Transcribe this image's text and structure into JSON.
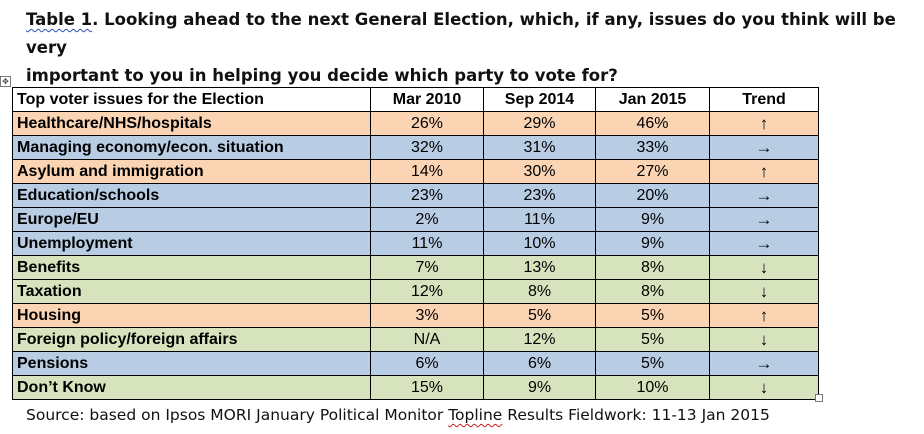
{
  "title": {
    "label": "Table 1",
    "line1_rest": ". Looking ahead to the next General Election, which, if any, issues do you think will be very",
    "line2": "important to you in helping you decide which party to vote for?"
  },
  "table": {
    "headers": [
      "Top voter issues for the Election",
      "Mar 2010",
      "Sep 2014",
      "Jan 2015",
      "Trend"
    ],
    "rows": [
      {
        "issue": "Healthcare/NHS/hospitals",
        "mar2010": "26%",
        "sep2014": "29%",
        "jan2015": "46%",
        "trend": "↑",
        "color": "peach"
      },
      {
        "issue": "Managing economy/econ. situation",
        "mar2010": "32%",
        "sep2014": "31%",
        "jan2015": "33%",
        "trend": "→",
        "color": "blue"
      },
      {
        "issue": "Asylum and immigration",
        "mar2010": "14%",
        "sep2014": "30%",
        "jan2015": "27%",
        "trend": "↑",
        "color": "peach"
      },
      {
        "issue": "Education/schools",
        "mar2010": "23%",
        "sep2014": "23%",
        "jan2015": "20%",
        "trend": "→",
        "color": "blue"
      },
      {
        "issue": "Europe/EU",
        "mar2010": "2%",
        "sep2014": "11%",
        "jan2015": "9%",
        "trend": "→",
        "color": "blue"
      },
      {
        "issue": "Unemployment",
        "mar2010": "11%",
        "sep2014": "10%",
        "jan2015": "9%",
        "trend": "→",
        "color": "blue"
      },
      {
        "issue": "Benefits",
        "mar2010": "7%",
        "sep2014": "13%",
        "jan2015": "8%",
        "trend": "↓",
        "color": "green"
      },
      {
        "issue": "Taxation",
        "mar2010": "12%",
        "sep2014": "8%",
        "jan2015": "8%",
        "trend": "↓",
        "color": "green"
      },
      {
        "issue": "Housing",
        "mar2010": "3%",
        "sep2014": "5%",
        "jan2015": "5%",
        "trend": "↑",
        "color": "peach"
      },
      {
        "issue": "Foreign policy/foreign affairs",
        "mar2010": "N/A",
        "sep2014": "12%",
        "jan2015": "5%",
        "trend": "↓",
        "color": "green"
      },
      {
        "issue": "Pensions",
        "mar2010": "6%",
        "sep2014": "6%",
        "jan2015": "5%",
        "trend": "→",
        "color": "blue"
      },
      {
        "issue": "Don’t Know",
        "mar2010": "15%",
        "sep2014": "9%",
        "jan2015": "10%",
        "trend": "↓",
        "color": "green"
      }
    ]
  },
  "source": {
    "before": "Source: based on Ipsos MORI January Political Monitor ",
    "topline": "Topline",
    "after": " Results Fieldwork: 11-13 Jan 2015"
  },
  "icons": {
    "move_handle": "move-arrows-icon",
    "resize_handle": "resize-handle-icon"
  },
  "colors": {
    "peach": "#fbd4b4",
    "blue": "#b8cce4",
    "green": "#d6e3bc",
    "spellcheck_blue": "#2e4fb8",
    "spellcheck_red": "#d02020"
  }
}
